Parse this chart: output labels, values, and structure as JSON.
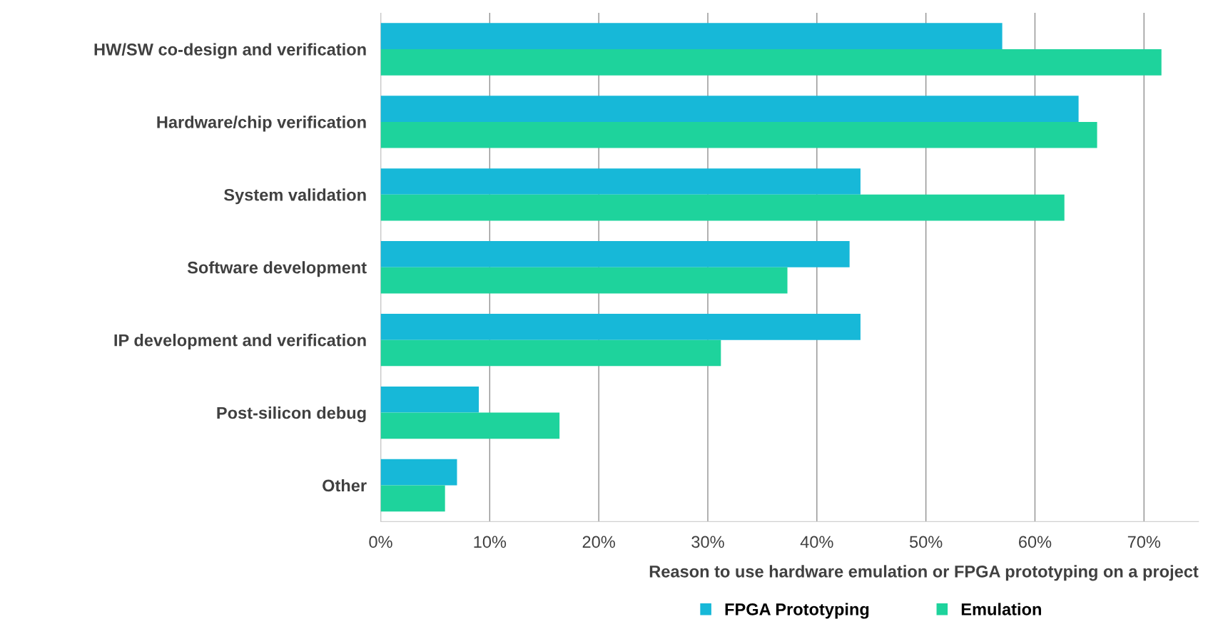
{
  "chart_data": {
    "type": "bar",
    "orientation": "horizontal",
    "categories": [
      "HW/SW co-design and verification",
      "Hardware/chip verification",
      "System validation",
      "Software development",
      "IP development and verification",
      "Post-silicon debug",
      "Other"
    ],
    "series": [
      {
        "name": "FPGA Prototyping",
        "color": "#17b8d8",
        "values": [
          57,
          64,
          44,
          43,
          44,
          9,
          7
        ]
      },
      {
        "name": "Emulation",
        "color": "#1ed39c",
        "values": [
          71.6,
          65.7,
          62.7,
          37.3,
          31.2,
          16.4,
          5.9
        ]
      }
    ],
    "xlim": [
      0,
      75
    ],
    "xticks": [
      {
        "value": 0,
        "label": "0%"
      },
      {
        "value": 10,
        "label": "10%"
      },
      {
        "value": 20,
        "label": "20%"
      },
      {
        "value": 30,
        "label": "30%"
      },
      {
        "value": 40,
        "label": "40%"
      },
      {
        "value": 50,
        "label": "50%"
      },
      {
        "value": 60,
        "label": "60%"
      },
      {
        "value": 70,
        "label": "70%"
      }
    ],
    "xlabel": "Reason to use hardware emulation or FPGA prototyping on a project",
    "grid": "x",
    "legend": "bottom"
  }
}
